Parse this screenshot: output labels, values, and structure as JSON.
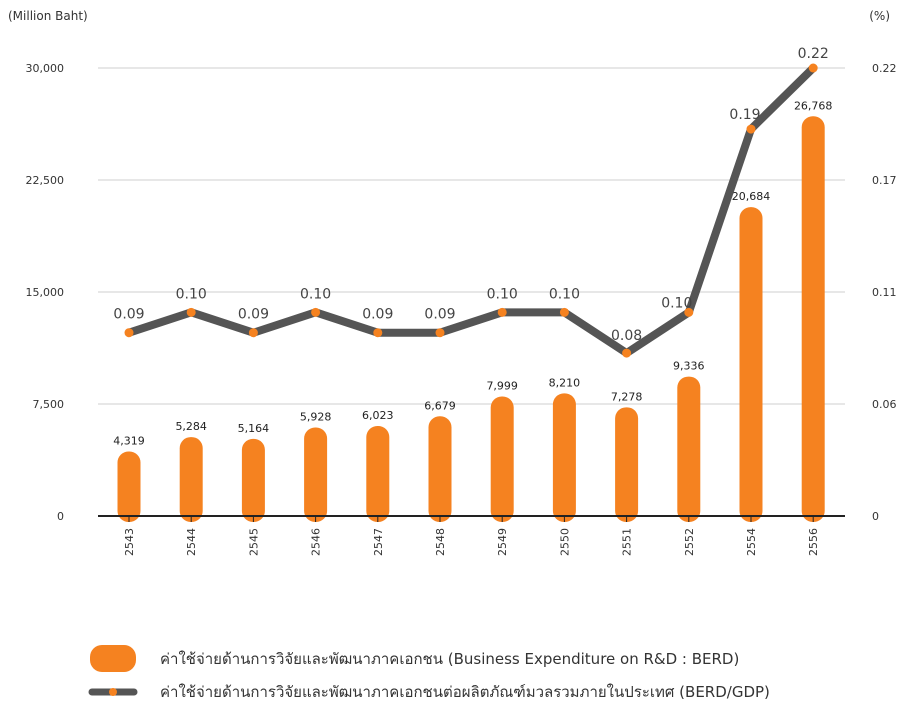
{
  "chart_data": {
    "type": "bar+line",
    "left_axis_unit": "(Million Baht)",
    "right_axis_unit": "(%)",
    "categories": [
      "2543",
      "2544",
      "2545",
      "2546",
      "2547",
      "2548",
      "2549",
      "2550",
      "2551",
      "2552",
      "2554",
      "2556"
    ],
    "left_axis": {
      "ticks": [
        "0",
        "7,500",
        "15,000",
        "22,500",
        "30,000"
      ],
      "tick_values": [
        0,
        7500,
        15000,
        22500,
        30000
      ],
      "ylim": [
        0,
        30000
      ]
    },
    "right_axis": {
      "ticks": [
        "0",
        "0.06",
        "0.11",
        "0.17",
        "0.22"
      ],
      "tick_values": [
        0,
        0.055,
        0.11,
        0.165,
        0.22
      ],
      "ylim": [
        0,
        0.22
      ]
    },
    "grid": true,
    "series": [
      {
        "name": "ค่าใช้จ่ายด้านการวิจัยและพัฒนาภาคเอกชน (Business  Expenditure on R&D : BERD)",
        "type": "bar",
        "color": "#F58220",
        "values": [
          4319,
          5284,
          5164,
          5928,
          6023,
          6679,
          7999,
          8210,
          7278,
          9336,
          20684,
          26768
        ],
        "labels": [
          "4,319",
          "5,284",
          "5,164",
          "5,928",
          "6,023",
          "6,679",
          "7,999",
          "8,210",
          "7,278",
          "9,336",
          "20,684",
          "26,768"
        ]
      },
      {
        "name": "ค่าใช้จ่ายด้านการวิจัยและพัฒนาภาคเอกชนต่อผลิตภัณฑ์มวลรวมภายในประเทศ (BERD/GDP)",
        "type": "line",
        "color": "#555555",
        "marker_color": "#F58220",
        "values": [
          0.09,
          0.1,
          0.09,
          0.1,
          0.09,
          0.09,
          0.1,
          0.1,
          0.08,
          0.1,
          0.19,
          0.22
        ],
        "labels": [
          "0.09",
          "0.10",
          "0.09",
          "0.10",
          "0.09",
          "0.09",
          "0.10",
          "0.10",
          "0.08",
          "0.10",
          "0.19",
          "0.22"
        ]
      }
    ],
    "legend_position": "bottom"
  }
}
